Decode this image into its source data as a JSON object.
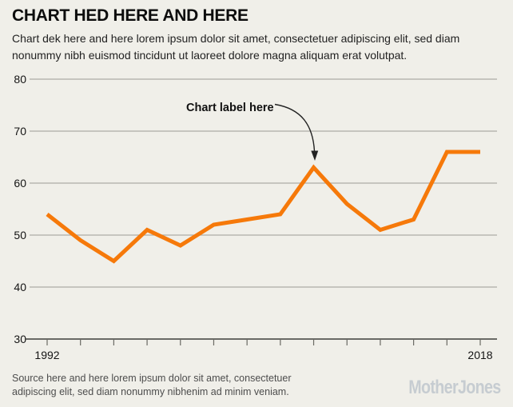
{
  "header": {
    "title": "CHART HED HERE AND HERE",
    "dek": "Chart dek here and here lorem ipsum dolor sit amet, consectetuer adipiscing elit, sed diam nonummy nibh euismod tincidunt ut laoreet dolore magna aliquam erat volutpat."
  },
  "chart_data": {
    "type": "line",
    "x": [
      1992,
      1994,
      1996,
      1998,
      2000,
      2002,
      2004,
      2006,
      2008,
      2010,
      2012,
      2014,
      2016,
      2018
    ],
    "series": [
      {
        "name": "main-series",
        "values": [
          54,
          49,
          45,
          51,
          48,
          52,
          53,
          54,
          63,
          56,
          51,
          53,
          66,
          66
        ]
      }
    ],
    "ylim": [
      30,
      80
    ],
    "yticks": [
      30,
      40,
      50,
      60,
      70,
      80
    ],
    "x_axis_labels_shown": [
      "1992",
      "2018"
    ],
    "grid": true,
    "legend": "none",
    "line_color": "#F6790A",
    "annotation": {
      "text": "Chart label here",
      "points_to_year": 2008,
      "points_to_value": 63
    }
  },
  "source": {
    "text": "Source here and here lorem ipsum dolor sit amet, consectetuer adipiscing elit, sed diam nonummy nibhenim ad minim veniam."
  },
  "logo": {
    "text": "MotherJones"
  },
  "colors": {
    "background": "#F0EFE9",
    "line": "#F6790A",
    "grid": "#ACACA6",
    "axis": "#3E3E3A",
    "label_text": "#141414",
    "logo": "#C6CCD1"
  }
}
